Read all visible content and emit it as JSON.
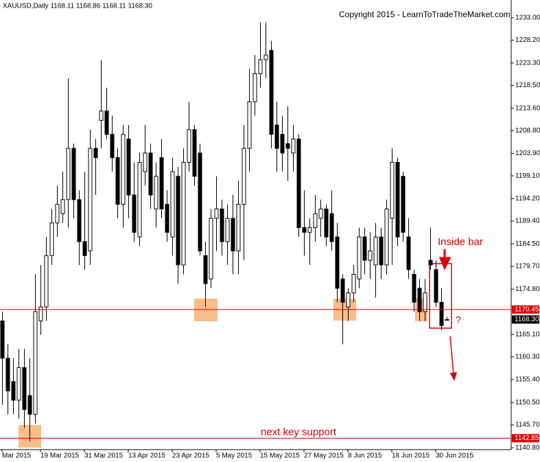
{
  "chart_data": {
    "type": "candlestick",
    "header": "XAUUSD,Daily  1168.11 1168.86 1168.11 1168.30",
    "copyright": "Copyright 2015 - LearnToTradeTheMarket.com",
    "annotations": {
      "inside_bar": "Inside bar",
      "question": "?",
      "support": "next key support"
    },
    "categories": [
      "Mar 2015",
      null,
      null,
      null,
      null,
      null,
      null,
      "19 Mar 2015",
      null,
      null,
      null,
      null,
      null,
      null,
      null,
      "31 Mar 2015",
      null,
      null,
      null,
      null,
      null,
      null,
      null,
      "13 Apr 2015",
      null,
      null,
      null,
      null,
      null,
      null,
      null,
      "23 Apr 2015",
      null,
      null,
      null,
      null,
      null,
      null,
      null,
      "5 May 2015",
      null,
      null,
      null,
      null,
      null,
      null,
      null,
      "15 May 2015",
      null,
      null,
      null,
      null,
      null,
      null,
      null,
      "27 May 2015",
      null,
      null,
      null,
      null,
      null,
      null,
      null,
      "8 Jun 2015",
      null,
      null,
      null,
      null,
      null,
      null,
      null,
      "18 Jun 2015",
      null,
      null,
      null,
      null,
      null,
      null,
      null,
      "30 Jun 2015",
      null,
      null
    ],
    "open": [
      1168,
      1160,
      1155,
      1151,
      1158,
      1152,
      1148,
      1168,
      1171,
      1182,
      1189,
      1191,
      1194,
      1205,
      1194,
      1185,
      1183,
      1205,
      1211,
      1213,
      1208,
      1203,
      1193,
      1207,
      1195,
      1186,
      1200,
      1204,
      1192,
      1203,
      1193,
      1186,
      1199,
      1180,
      1202,
      1209,
      1204,
      1182,
      1177,
      1190,
      1192,
      1185,
      1190,
      1183,
      1193,
      1205,
      1215,
      1221,
      1224,
      1226,
      1210,
      1208,
      1206,
      1204,
      1207,
      1188,
      1187,
      1188,
      1190,
      1192,
      1191,
      1186,
      1177,
      1171,
      1174,
      1177,
      1186,
      1181,
      1180,
      1186,
      1180,
      1190,
      1202,
      1199,
      1186,
      1178,
      1175,
      1170,
      1181,
      1179,
      1172,
      1168.11
    ],
    "high": [
      1170,
      1163,
      1160,
      1162,
      1162,
      1160,
      1178,
      1180,
      1186,
      1192,
      1197,
      1200,
      1220,
      1206,
      1196,
      1200,
      1209,
      1207,
      1224,
      1218,
      1212,
      1205,
      1210,
      1210,
      1202,
      1204,
      1210,
      1206,
      1202,
      1207,
      1196,
      1203,
      1201,
      1205,
      1215,
      1210,
      1206,
      1185,
      1192,
      1199,
      1194,
      1193,
      1195,
      1198,
      1210,
      1222,
      1225,
      1232,
      1232,
      1228,
      1215,
      1212,
      1214,
      1210,
      1208,
      1196,
      1190,
      1195,
      1194,
      1193,
      1196,
      1189,
      1178,
      1175,
      1180,
      1188,
      1188,
      1187,
      1189,
      1188,
      1194,
      1205,
      1203,
      1200,
      1190,
      1179,
      1177,
      1177,
      1188,
      1181,
      1175,
      1168.86
    ],
    "low": [
      1150,
      1148,
      1148,
      1147,
      1145,
      1142.2,
      1146,
      1165,
      1168,
      1180,
      1186,
      1189,
      1188,
      1190,
      1180,
      1179,
      1180,
      1195,
      1205,
      1207,
      1200,
      1190,
      1188,
      1190,
      1185,
      1184,
      1197,
      1192,
      1188,
      1190,
      1185,
      1182,
      1176,
      1178,
      1200,
      1197,
      1182,
      1171,
      1175,
      1183,
      1182,
      1180,
      1178,
      1178,
      1181,
      1200,
      1212,
      1218,
      1220,
      1205,
      1200,
      1200,
      1198,
      1200,
      1186,
      1182,
      1180,
      1185,
      1186,
      1184,
      1183,
      1172,
      1163,
      1168,
      1172,
      1175,
      1178,
      1177,
      1173,
      1177,
      1178,
      1180,
      1184,
      1185,
      1177,
      1170,
      1168,
      1168,
      1179,
      1171,
      1166,
      1168.11
    ],
    "close": [
      1160,
      1153,
      1151,
      1158,
      1149,
      1148,
      1170,
      1171,
      1182,
      1189,
      1193,
      1194,
      1205,
      1194,
      1185,
      1182,
      1205,
      1203,
      1213,
      1208,
      1203,
      1193,
      1208,
      1195,
      1187,
      1202,
      1204,
      1195,
      1199,
      1192,
      1187,
      1200,
      1180,
      1202,
      1209,
      1199,
      1183,
      1176,
      1190,
      1192,
      1185,
      1190,
      1183,
      1193,
      1205,
      1215,
      1221,
      1224,
      1225,
      1208,
      1205,
      1204,
      1205,
      1207,
      1188,
      1187,
      1188,
      1191,
      1192,
      1186,
      1185,
      1175,
      1172,
      1174,
      1178,
      1186,
      1181,
      1183,
      1186,
      1180,
      1192,
      1202,
      1186,
      1187,
      1179,
      1172,
      1170,
      1174,
      1180,
      1172,
      1167,
      1168.3
    ],
    "ylim": [
      1140.4,
      1236.8
    ],
    "yticks": [
      {
        "value": 1233,
        "label": "1233.00"
      },
      {
        "value": 1228.2,
        "label": "1228.20"
      },
      {
        "value": 1223.3,
        "label": "1223.30"
      },
      {
        "value": 1218.5,
        "label": "1218.50"
      },
      {
        "value": 1213.6,
        "label": "1213.60"
      },
      {
        "value": 1208.8,
        "label": "1208.80"
      },
      {
        "value": 1203.9,
        "label": "1203.90"
      },
      {
        "value": 1199.1,
        "label": "1199.10"
      },
      {
        "value": 1194.2,
        "label": "1194.20"
      },
      {
        "value": 1189.4,
        "label": "1189.40"
      },
      {
        "value": 1184.5,
        "label": "1184.50"
      },
      {
        "value": 1179.7,
        "label": "1179.70"
      },
      {
        "value": 1174.8,
        "label": "1174.80"
      },
      {
        "value": 1165.1,
        "label": "1165.10"
      },
      {
        "value": 1160.3,
        "label": "1160.30"
      },
      {
        "value": 1155.4,
        "label": "1155.40"
      },
      {
        "value": 1150.5,
        "label": "1150.50"
      },
      {
        "value": 1145.7,
        "label": "1145.70"
      },
      {
        "value": 1140.8,
        "label": "1140.80"
      }
    ],
    "levels": [
      {
        "value": 1170.45,
        "label": "1170.45",
        "color": "#e00000"
      },
      {
        "value": 1142.85,
        "label": "1142.85",
        "color": "#e00000"
      }
    ],
    "current": {
      "value": 1168.3,
      "label": "1168.30",
      "color": "#000000"
    }
  }
}
